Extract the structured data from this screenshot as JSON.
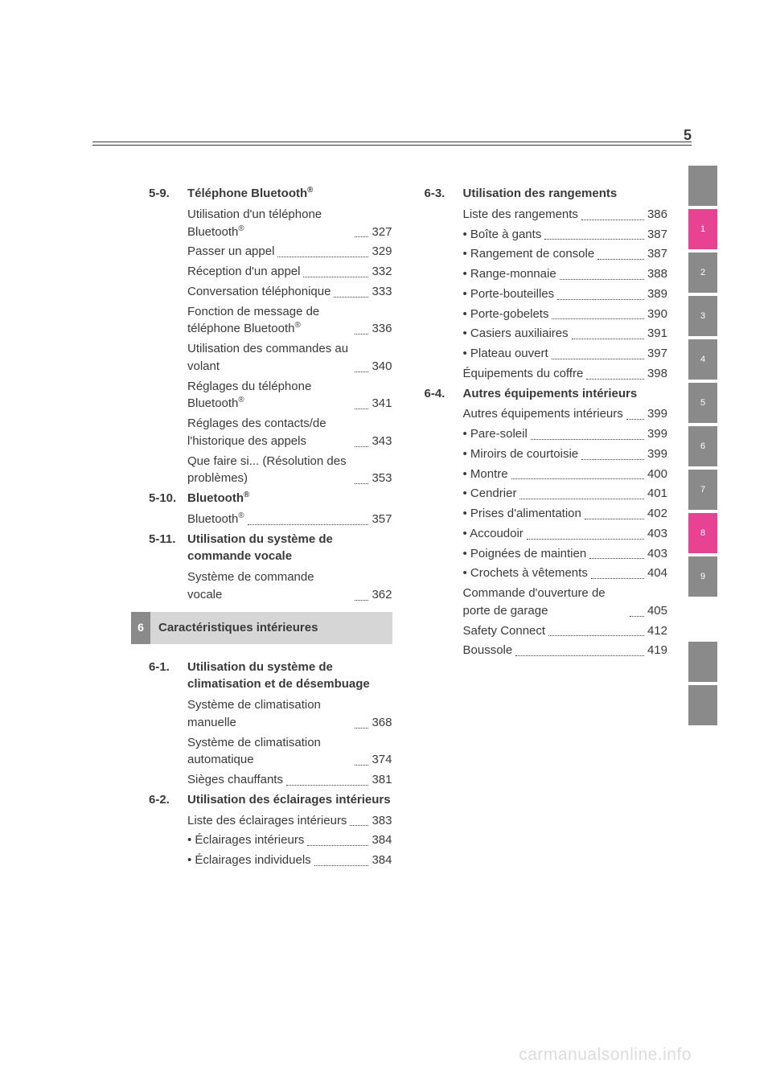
{
  "page_number": "5",
  "watermark": "carmanualsonline.info",
  "left_column": {
    "sections": [
      {
        "number": "5-9.",
        "title_parts": [
          "Téléphone Bluetooth",
          "®"
        ],
        "entries": [
          {
            "label_parts": [
              "Utilisation d'un téléphone Bluetooth",
              "®"
            ],
            "wrap": true,
            "page": "327"
          },
          {
            "label": "Passer un appel",
            "page": "329"
          },
          {
            "label": "Réception d'un appel",
            "page": "332"
          },
          {
            "label": "Conversation téléphonique",
            "wrap": true,
            "page": "333"
          },
          {
            "label_parts": [
              "Fonction de message de téléphone Bluetooth",
              "®"
            ],
            "wrap": true,
            "page": "336"
          },
          {
            "label": "Utilisation des commandes au volant",
            "wrap": true,
            "page": "340"
          },
          {
            "label_parts": [
              "Réglages du téléphone Bluetooth",
              "®"
            ],
            "wrap": true,
            "page": "341"
          },
          {
            "label": "Réglages des contacts/de l'historique des appels",
            "wrap": true,
            "page": "343"
          },
          {
            "label": "Que faire si... (Résolution des problèmes)",
            "wrap": true,
            "page": "353"
          }
        ]
      },
      {
        "number": "5-10.",
        "title_parts": [
          "Bluetooth",
          "®"
        ],
        "entries": [
          {
            "label_parts": [
              "Bluetooth",
              "®"
            ],
            "page": "357"
          }
        ]
      },
      {
        "number": "5-11.",
        "title": "Utilisation du système de commande vocale",
        "entries": [
          {
            "label": "Système de commande vocale",
            "wrap": true,
            "page": "362"
          }
        ]
      }
    ],
    "chapter": {
      "num": "6",
      "title": "Caractéristiques intérieures"
    },
    "sections_after": [
      {
        "number": "6-1.",
        "title": "Utilisation du système de climatisation et de désembuage",
        "entries": [
          {
            "label": "Système de climatisation manuelle",
            "wrap": true,
            "page": "368"
          },
          {
            "label": "Système de climatisation automatique",
            "wrap": true,
            "page": "374"
          },
          {
            "label": "Sièges chauffants",
            "page": "381"
          }
        ]
      },
      {
        "number": "6-2.",
        "title": "Utilisation des éclairages intérieurs",
        "entries": [
          {
            "label": "Liste des éclairages intérieurs",
            "wrap": true,
            "page": "383"
          },
          {
            "label": "• Éclairages intérieurs",
            "page": "384"
          },
          {
            "label": "• Éclairages individuels",
            "wrap": true,
            "page": "384"
          }
        ]
      }
    ]
  },
  "right_column": {
    "sections": [
      {
        "number": "6-3.",
        "title": "Utilisation des rangements",
        "entries": [
          {
            "label": "Liste des rangements",
            "page": "386"
          },
          {
            "label": "• Boîte à gants",
            "page": "387"
          },
          {
            "label": "• Rangement de console",
            "wrap": true,
            "page": "387"
          },
          {
            "label": "• Range-monnaie",
            "page": "388"
          },
          {
            "label": "• Porte-bouteilles",
            "page": "389"
          },
          {
            "label": "• Porte-gobelets",
            "page": "390"
          },
          {
            "label": "• Casiers auxiliaires",
            "page": "391"
          },
          {
            "label": "• Plateau ouvert",
            "page": "397"
          },
          {
            "label": "Équipements du coffre",
            "page": "398"
          }
        ]
      },
      {
        "number": "6-4.",
        "title": "Autres équipements intérieurs",
        "entries": [
          {
            "label": "Autres équipements intérieurs",
            "wrap": true,
            "page": "399"
          },
          {
            "label": "• Pare-soleil",
            "page": "399"
          },
          {
            "label": "• Miroirs de courtoisie",
            "page": "399"
          },
          {
            "label": "• Montre",
            "page": "400"
          },
          {
            "label": "• Cendrier",
            "page": "401"
          },
          {
            "label": "• Prises d'alimentation",
            "page": "402"
          },
          {
            "label": "• Accoudoir",
            "page": "403"
          },
          {
            "label": "• Poignées de maintien",
            "wrap": true,
            "page": "403"
          },
          {
            "label": "• Crochets à vêtements",
            "wrap": true,
            "page": "404"
          },
          {
            "label": "Commande d'ouverture de porte de garage",
            "wrap": true,
            "page": "405"
          },
          {
            "label": "Safety Connect",
            "page": "412"
          },
          {
            "label": "Boussole",
            "page": "419"
          }
        ]
      }
    ]
  },
  "tabs": [
    {
      "label": "",
      "color": "#8a8a8a"
    },
    {
      "label": "1",
      "color": "#e84393"
    },
    {
      "label": "2",
      "color": "#8a8a8a"
    },
    {
      "label": "3",
      "color": "#8a8a8a"
    },
    {
      "label": "4",
      "color": "#8a8a8a"
    },
    {
      "label": "5",
      "color": "#8a8a8a"
    },
    {
      "label": "6",
      "color": "#8a8a8a"
    },
    {
      "label": "7",
      "color": "#8a8a8a"
    },
    {
      "label": "8",
      "color": "#e84393"
    },
    {
      "label": "9",
      "color": "#8a8a8a"
    }
  ],
  "bottom_tabs": [
    {
      "label": "",
      "color": "#8a8a8a"
    },
    {
      "label": "",
      "color": "#8a8a8a"
    }
  ]
}
